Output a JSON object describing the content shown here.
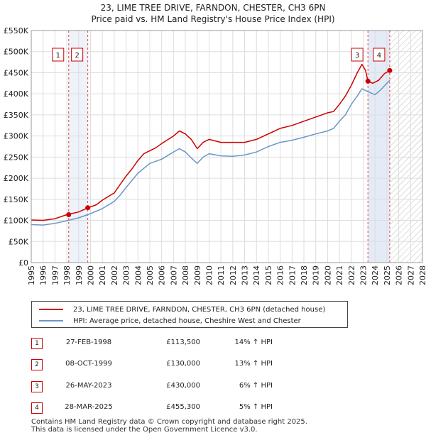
{
  "header": {
    "title": "23, LIME TREE DRIVE, FARNDON, CHESTER, CH3 6PN",
    "subtitle": "Price paid vs. HM Land Registry's House Price Index (HPI)"
  },
  "legend": {
    "property_label": "23, LIME TREE DRIVE, FARNDON, CHESTER, CH3 6PN (detached house)",
    "hpi_label": "HPI: Average price, detached house, Cheshire West and Chester"
  },
  "sales": [
    {
      "num": "1",
      "date": "27-FEB-1998",
      "price": "£113,500",
      "hpi": "14% ↑ HPI"
    },
    {
      "num": "2",
      "date": "08-OCT-1999",
      "price": "£130,000",
      "hpi": "13% ↑ HPI"
    },
    {
      "num": "3",
      "date": "26-MAY-2023",
      "price": "£430,000",
      "hpi": "6% ↑ HPI"
    },
    {
      "num": "4",
      "date": "28-MAR-2025",
      "price": "£455,300",
      "hpi": "5% ↑ HPI"
    }
  ],
  "footer": {
    "line1": "Contains HM Land Registry data © Crown copyright and database right 2025.",
    "line2": "This data is licensed under the Open Government Licence v3.0."
  },
  "colors": {
    "property": "#cc0000",
    "hpi": "#6a96c8",
    "marker": "#cc0000",
    "sale_band": "#dde6f4",
    "grid": "#dddddd"
  },
  "chart_data": {
    "type": "line",
    "title": "23, LIME TREE DRIVE, FARNDON, CHESTER, CH3 6PN",
    "subtitle": "Price paid vs. HM Land Registry's House Price Index (HPI)",
    "xlabel": "",
    "ylabel": "",
    "xlim": [
      1995,
      2028
    ],
    "ylim": [
      0,
      550000
    ],
    "x_ticks": [
      "1995",
      "1996",
      "1997",
      "1998",
      "1999",
      "2000",
      "2001",
      "2002",
      "2003",
      "2004",
      "2005",
      "2006",
      "2007",
      "2008",
      "2009",
      "2010",
      "2011",
      "2012",
      "2013",
      "2014",
      "2015",
      "2016",
      "2017",
      "2018",
      "2019",
      "2020",
      "2021",
      "2022",
      "2023",
      "2024",
      "2025",
      "2026",
      "2027",
      "2028"
    ],
    "y_ticks": [
      {
        "value": 0,
        "label": "£0"
      },
      {
        "value": 50000,
        "label": "£50K"
      },
      {
        "value": 100000,
        "label": "£100K"
      },
      {
        "value": 150000,
        "label": "£150K"
      },
      {
        "value": 200000,
        "label": "£200K"
      },
      {
        "value": 250000,
        "label": "£250K"
      },
      {
        "value": 300000,
        "label": "£300K"
      },
      {
        "value": 350000,
        "label": "£350K"
      },
      {
        "value": 400000,
        "label": "£400K"
      },
      {
        "value": 450000,
        "label": "£450K"
      },
      {
        "value": 500000,
        "label": "£500K"
      },
      {
        "value": 550000,
        "label": "£550K"
      }
    ],
    "grid": true,
    "series": [
      {
        "name": "23, LIME TREE DRIVE, FARNDON, CHESTER, CH3 6PN (detached house)",
        "points": [
          [
            1995,
            101000
          ],
          [
            1996,
            100000
          ],
          [
            1997,
            104000
          ],
          [
            1998,
            113500
          ],
          [
            1999,
            120000
          ],
          [
            1999.8,
            130000
          ],
          [
            2000.5,
            137000
          ],
          [
            2001,
            148000
          ],
          [
            2002,
            165000
          ],
          [
            2002.5,
            185000
          ],
          [
            2003,
            205000
          ],
          [
            2003.5,
            222000
          ],
          [
            2004,
            242000
          ],
          [
            2004.5,
            258000
          ],
          [
            2005,
            265000
          ],
          [
            2005.5,
            272000
          ],
          [
            2006,
            282000
          ],
          [
            2007,
            300000
          ],
          [
            2007.5,
            312000
          ],
          [
            2008,
            305000
          ],
          [
            2008.5,
            292000
          ],
          [
            2009,
            270000
          ],
          [
            2009.5,
            285000
          ],
          [
            2010,
            292000
          ],
          [
            2011,
            285000
          ],
          [
            2012,
            285000
          ],
          [
            2013,
            285000
          ],
          [
            2014,
            292000
          ],
          [
            2015,
            305000
          ],
          [
            2016,
            318000
          ],
          [
            2017,
            325000
          ],
          [
            2018,
            335000
          ],
          [
            2019,
            345000
          ],
          [
            2020,
            355000
          ],
          [
            2020.5,
            358000
          ],
          [
            2021,
            375000
          ],
          [
            2021.5,
            395000
          ],
          [
            2022,
            420000
          ],
          [
            2022.5,
            450000
          ],
          [
            2022.9,
            470000
          ],
          [
            2023.2,
            455000
          ],
          [
            2023.4,
            430000
          ],
          [
            2023.8,
            425000
          ],
          [
            2024.3,
            432000
          ],
          [
            2024.8,
            448000
          ],
          [
            2025.25,
            455300
          ]
        ]
      },
      {
        "name": "HPI: Average price, detached house, Cheshire West and Chester",
        "points": [
          [
            1995,
            90000
          ],
          [
            1996,
            89000
          ],
          [
            1997,
            93000
          ],
          [
            1998,
            99000
          ],
          [
            1999,
            106000
          ],
          [
            2000,
            116000
          ],
          [
            2001,
            128000
          ],
          [
            2002,
            145000
          ],
          [
            2002.5,
            160000
          ],
          [
            2003,
            178000
          ],
          [
            2004,
            212000
          ],
          [
            2005,
            235000
          ],
          [
            2006,
            245000
          ],
          [
            2007,
            262000
          ],
          [
            2007.5,
            270000
          ],
          [
            2008,
            262000
          ],
          [
            2008.5,
            248000
          ],
          [
            2009,
            235000
          ],
          [
            2009.5,
            250000
          ],
          [
            2010,
            258000
          ],
          [
            2011,
            253000
          ],
          [
            2012,
            252000
          ],
          [
            2013,
            255000
          ],
          [
            2014,
            262000
          ],
          [
            2015,
            275000
          ],
          [
            2016,
            285000
          ],
          [
            2017,
            290000
          ],
          [
            2018,
            297000
          ],
          [
            2019,
            305000
          ],
          [
            2020,
            312000
          ],
          [
            2020.5,
            318000
          ],
          [
            2021,
            335000
          ],
          [
            2021.5,
            350000
          ],
          [
            2022,
            375000
          ],
          [
            2022.5,
            395000
          ],
          [
            2022.9,
            412000
          ],
          [
            2023.4,
            405000
          ],
          [
            2024,
            398000
          ],
          [
            2024.5,
            410000
          ],
          [
            2025,
            425000
          ],
          [
            2025.25,
            432000
          ]
        ]
      }
    ],
    "sales": [
      {
        "label": "1",
        "x": 1998.16,
        "y": 113500
      },
      {
        "label": "2",
        "x": 1999.77,
        "y": 130000
      },
      {
        "label": "3",
        "x": 2023.4,
        "y": 430000
      },
      {
        "label": "4",
        "x": 2025.24,
        "y": 455300
      }
    ],
    "shaded_future_from": 2025.25
  }
}
